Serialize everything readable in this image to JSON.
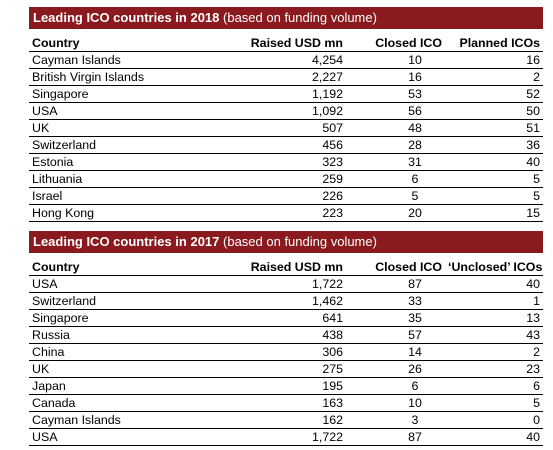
{
  "tables": [
    {
      "title_bold": "Leading ICO countries in 2018",
      "title_note": "(based on funding volume)",
      "headers": [
        "Country",
        "Raised USD mn",
        "Closed ICO",
        "Planned ICOs"
      ],
      "rows": [
        [
          "Cayman Islands",
          "4,254",
          "10",
          "16"
        ],
        [
          "British Virgin Islands",
          "2,227",
          "16",
          "2"
        ],
        [
          "Singapore",
          "1,192",
          "53",
          "52"
        ],
        [
          "USA",
          "1,092",
          "56",
          "50"
        ],
        [
          "UK",
          "507",
          "48",
          "51"
        ],
        [
          "Switzerland",
          "456",
          "28",
          "36"
        ],
        [
          "Estonia",
          "323",
          "31",
          "40"
        ],
        [
          "Lithuania",
          "259",
          "6",
          "5"
        ],
        [
          "Israel",
          "226",
          "5",
          "5"
        ],
        [
          "Hong Kong",
          "223",
          "20",
          "15"
        ]
      ]
    },
    {
      "title_bold": "Leading ICO countries in 2017",
      "title_note": "(based on funding volume)",
      "headers": [
        "Country",
        "Raised USD mn",
        "Closed ICO",
        "‘Unclosed’ ICOs"
      ],
      "rows": [
        [
          "USA",
          "1,722",
          "87",
          "40"
        ],
        [
          "Switzerland",
          "1,462",
          "33",
          "1"
        ],
        [
          "Singapore",
          "641",
          "35",
          "13"
        ],
        [
          "Russia",
          "438",
          "57",
          "43"
        ],
        [
          "China",
          "306",
          "14",
          "2"
        ],
        [
          "UK",
          "275",
          "26",
          "23"
        ],
        [
          "Japan",
          "195",
          "6",
          "6"
        ],
        [
          "Canada",
          "163",
          "10",
          "5"
        ],
        [
          "Cayman Islands",
          "162",
          "3",
          "0"
        ],
        [
          "USA",
          "1,722",
          "87",
          "40"
        ]
      ]
    }
  ],
  "colors": {
    "title_bar": "#8b1a1f",
    "title_text": "#ffffff",
    "rule": "#000000"
  }
}
